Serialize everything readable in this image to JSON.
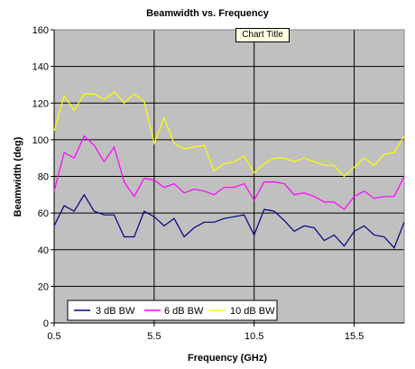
{
  "chart_data": {
    "type": "line",
    "title": "Beamwidth vs. Frequency",
    "xlabel": "Frequency (GHz)",
    "ylabel": "Beamwidth (deg)",
    "xlim": [
      0.5,
      18.0
    ],
    "ylim": [
      0,
      160
    ],
    "x_ticks": [
      0.5,
      5.5,
      10.5,
      15.5
    ],
    "y_ticks": [
      0,
      20,
      40,
      60,
      80,
      100,
      120,
      140,
      160
    ],
    "grid": true,
    "legend_position": "bottom-left",
    "x": [
      0.5,
      1.0,
      1.5,
      2.0,
      2.5,
      3.0,
      3.5,
      4.0,
      4.5,
      5.0,
      5.5,
      6.0,
      6.5,
      7.0,
      7.5,
      8.0,
      8.5,
      9.0,
      9.5,
      10.0,
      10.5,
      11.0,
      11.5,
      12.0,
      12.5,
      13.0,
      13.5,
      14.0,
      14.5,
      15.0,
      15.5,
      16.0,
      16.5,
      17.0,
      17.5,
      18.0
    ],
    "series": [
      {
        "name": "3 dB BW",
        "color": "#000080",
        "values": [
          53,
          64,
          61,
          70,
          61,
          59,
          59,
          47,
          47,
          61,
          58,
          53,
          57,
          47,
          52,
          55,
          55,
          57,
          58,
          59,
          48,
          62,
          61,
          56,
          50,
          53,
          52,
          45,
          48,
          42,
          50,
          53,
          48,
          47,
          41,
          55
        ]
      },
      {
        "name": "6 dB BW",
        "color": "#ff00ff",
        "values": [
          72,
          93,
          90,
          102,
          97,
          88,
          96,
          77,
          69,
          79,
          78,
          74,
          76,
          71,
          73,
          72,
          70,
          74,
          74,
          76,
          67,
          77,
          77,
          76,
          70,
          71,
          69,
          66,
          66,
          62,
          69,
          72,
          68,
          69,
          69,
          80
        ]
      },
      {
        "name": "10 dB BW",
        "color": "#ffff00",
        "values": [
          105,
          124,
          116,
          125,
          125,
          122,
          126,
          120,
          125,
          121,
          98,
          112,
          98,
          95,
          96,
          97,
          83,
          87,
          88,
          91,
          82,
          87,
          90,
          90,
          88,
          90,
          88,
          86,
          86,
          80,
          85,
          90,
          86,
          92,
          93,
          102
        ]
      }
    ]
  },
  "tooltip": "Chart Title"
}
